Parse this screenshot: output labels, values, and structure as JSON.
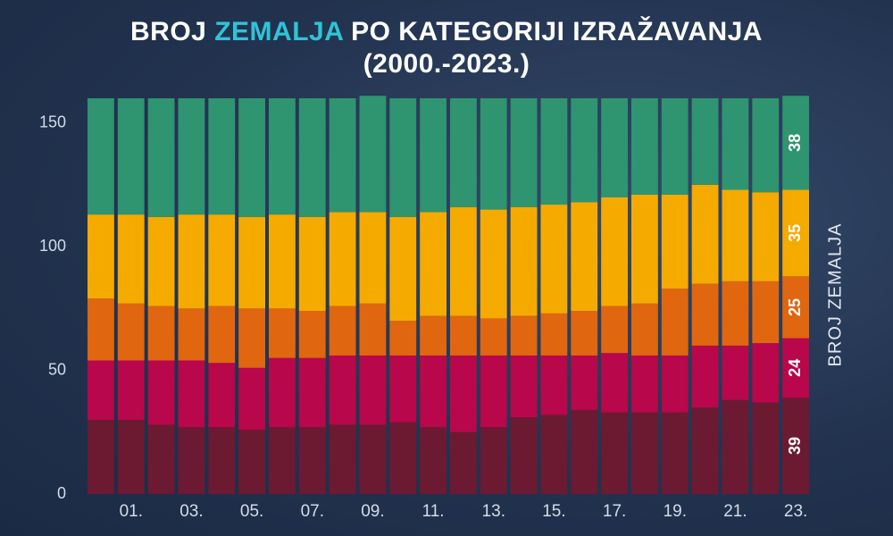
{
  "title": {
    "part1": "BROJ ",
    "highlight": "ZEMALJA",
    "part2": " PO KATEGORIJI IZRAŽAVANJA",
    "line2": "(2000.-2023.)"
  },
  "colors": {
    "highlight": "#2ec4d6",
    "background": "#22334f"
  },
  "chart_data": {
    "type": "bar",
    "stacked": true,
    "ylabel": "BROJ ZEMALJA",
    "ylim": [
      0,
      160
    ],
    "yticks": [
      0,
      50,
      100,
      150
    ],
    "categories": [
      "00.",
      "01.",
      "02.",
      "03.",
      "04.",
      "05.",
      "06.",
      "07.",
      "08.",
      "09.",
      "10.",
      "11.",
      "12.",
      "13.",
      "14.",
      "15.",
      "16.",
      "17.",
      "18.",
      "19.",
      "20.",
      "21.",
      "22.",
      "23."
    ],
    "xtick_labels": [
      "01.",
      "03.",
      "05.",
      "07.",
      "09.",
      "11.",
      "13.",
      "15.",
      "17.",
      "19.",
      "21.",
      "23."
    ],
    "series": [
      {
        "color": "#6b1a32",
        "values": [
          30,
          30,
          28,
          27,
          27,
          26,
          27,
          27,
          28,
          28,
          29,
          27,
          25,
          27,
          31,
          32,
          34,
          33,
          33,
          33,
          35,
          38,
          37,
          39
        ]
      },
      {
        "color": "#b8074a",
        "values": [
          24,
          24,
          26,
          27,
          26,
          25,
          28,
          28,
          28,
          28,
          27,
          29,
          31,
          29,
          25,
          24,
          22,
          24,
          23,
          23,
          25,
          22,
          24,
          24
        ]
      },
      {
        "color": "#e0660f",
        "values": [
          25,
          23,
          22,
          21,
          23,
          24,
          20,
          19,
          20,
          21,
          14,
          16,
          16,
          15,
          16,
          17,
          18,
          19,
          21,
          27,
          25,
          26,
          25,
          25
        ]
      },
      {
        "color": "#f5aa00",
        "values": [
          34,
          36,
          36,
          38,
          37,
          37,
          38,
          38,
          38,
          37,
          42,
          42,
          44,
          44,
          44,
          44,
          44,
          44,
          44,
          38,
          40,
          37,
          36,
          35
        ]
      },
      {
        "color": "#2f9470",
        "values": [
          47,
          47,
          48,
          47,
          47,
          48,
          47,
          48,
          46,
          47,
          48,
          46,
          44,
          45,
          44,
          43,
          42,
          40,
          39,
          39,
          35,
          37,
          38,
          38
        ]
      }
    ],
    "data_labels": {
      "category": "23.",
      "values": [
        "39",
        "24",
        "25",
        "35",
        "38"
      ]
    }
  }
}
